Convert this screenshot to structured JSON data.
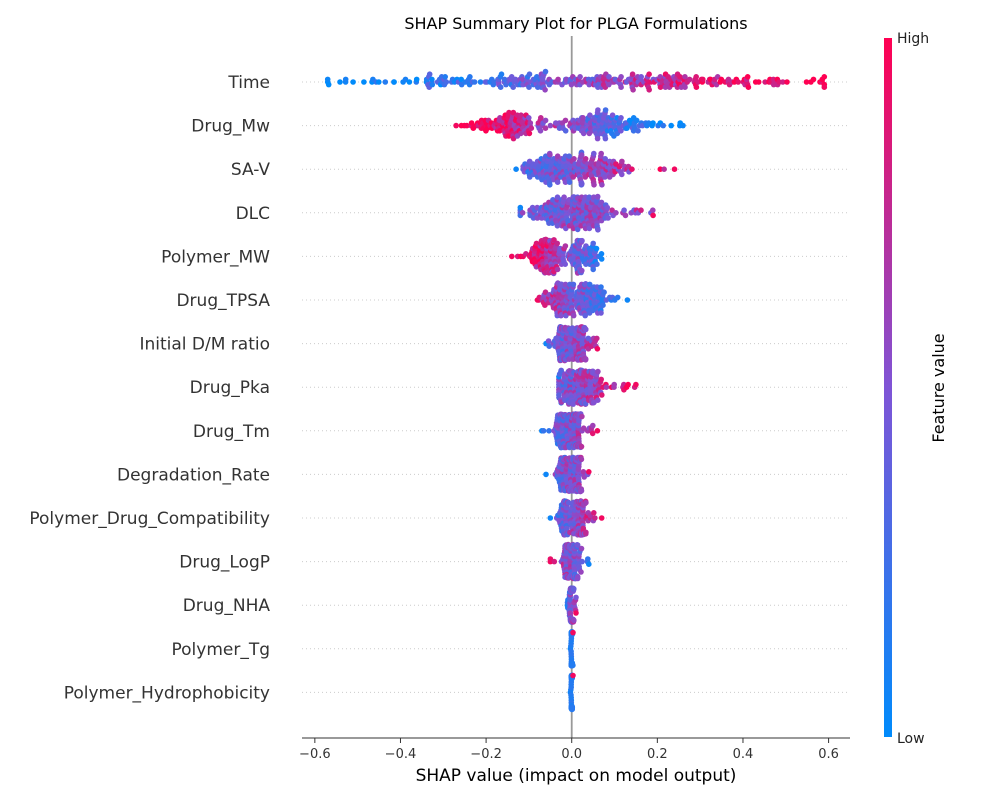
{
  "chart_data": {
    "type": "scatter",
    "title": "SHAP Summary Plot for PLGA Formulations",
    "xlabel": "SHAP value (impact on model output)",
    "xlim": [
      -0.63,
      0.65
    ],
    "xticks": [
      -0.6,
      -0.4,
      -0.2,
      0.0,
      0.2,
      0.4,
      0.6
    ],
    "xtick_labels": [
      "−0.6",
      "−0.4",
      "−0.2",
      "0.0",
      "0.2",
      "0.4",
      "0.6"
    ],
    "zero_line": 0.0,
    "colorbar": {
      "label": "Feature value",
      "high_label": "High",
      "low_label": "Low",
      "low_color": "#008bfb",
      "mid_color": "#7f54d6",
      "high_color": "#ff0052"
    },
    "features": [
      {
        "name": "Time",
        "min": -0.57,
        "max": 0.59,
        "neg_center": -0.13,
        "pos_center": 0.22,
        "spread": 0.34,
        "points": 300,
        "order": 1.0
      },
      {
        "name": "Drug_Mw",
        "min": -0.27,
        "max": 0.26,
        "neg_center": -0.14,
        "pos_center": 0.07,
        "spread": 0.09,
        "points": 250,
        "order": -1.0
      },
      {
        "name": "SA-V",
        "min": -0.13,
        "max": 0.24,
        "neg_center": -0.04,
        "pos_center": 0.05,
        "spread": 0.07,
        "points": 220,
        "order": 0.6
      },
      {
        "name": "DLC",
        "min": -0.12,
        "max": 0.19,
        "neg_center": -0.03,
        "pos_center": 0.04,
        "spread": 0.06,
        "points": 220,
        "order": 0.2
      },
      {
        "name": "Polymer_MW",
        "min": -0.14,
        "max": 0.07,
        "neg_center": -0.06,
        "pos_center": 0.02,
        "spread": 0.04,
        "points": 200,
        "order": -1.0
      },
      {
        "name": "Drug_TPSA",
        "min": -0.08,
        "max": 0.13,
        "neg_center": -0.02,
        "pos_center": 0.04,
        "spread": 0.04,
        "points": 180,
        "order": -0.7
      },
      {
        "name": "Initial D/M ratio",
        "min": -0.06,
        "max": 0.06,
        "neg_center": -0.02,
        "pos_center": 0.02,
        "spread": 0.02,
        "points": 180,
        "order": 0.3
      },
      {
        "name": "Drug_Pka",
        "min": -0.03,
        "max": 0.15,
        "neg_center": -0.005,
        "pos_center": 0.04,
        "spread": 0.03,
        "points": 180,
        "order": 0.7
      },
      {
        "name": "Drug_Tm",
        "min": -0.07,
        "max": 0.06,
        "neg_center": -0.02,
        "pos_center": 0.01,
        "spread": 0.015,
        "points": 180,
        "order": 0.4
      },
      {
        "name": "Degradation_Rate",
        "min": -0.06,
        "max": 0.04,
        "neg_center": -0.02,
        "pos_center": 0.01,
        "spread": 0.015,
        "points": 180,
        "order": 0.2
      },
      {
        "name": "Polymer_Drug_Compatibility",
        "min": -0.05,
        "max": 0.07,
        "neg_center": -0.015,
        "pos_center": 0.02,
        "spread": 0.015,
        "points": 180,
        "order": 0.6
      },
      {
        "name": "Drug_LogP",
        "min": -0.05,
        "max": 0.04,
        "neg_center": -0.01,
        "pos_center": 0.005,
        "spread": 0.01,
        "points": 150,
        "order": -0.4
      },
      {
        "name": "Drug_NHA",
        "min": -0.01,
        "max": 0.01,
        "neg_center": -0.002,
        "pos_center": 0.002,
        "spread": 0.003,
        "points": 140,
        "order": 0.3
      },
      {
        "name": "Polymer_Tg",
        "min": -0.003,
        "max": 0.003,
        "neg_center": 0.0,
        "pos_center": 0.0,
        "spread": 0.001,
        "points": 120,
        "order": 0.0
      },
      {
        "name": "Polymer_Hydrophobicity",
        "min": -0.003,
        "max": 0.003,
        "neg_center": 0.0,
        "pos_center": 0.0,
        "spread": 0.001,
        "points": 120,
        "order": 0.0
      }
    ]
  }
}
